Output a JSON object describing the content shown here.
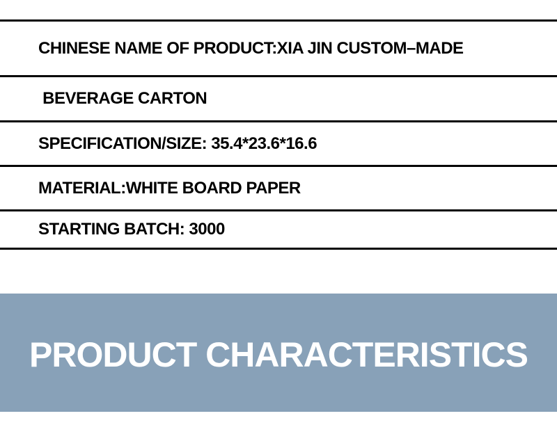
{
  "page": {
    "background_color": "#ffffff",
    "rule_color": "#000000",
    "text_color": "#000000"
  },
  "spec_table": {
    "rows": [
      {
        "label": "CHINESE NAME OF PRODUCT:XIA JIN CUSTOM–MADE"
      },
      {
        "label": " BEVERAGE CARTON"
      },
      {
        "label": "SPECIFICATION/SIZE: 35.4*23.6*16.6"
      },
      {
        "label": "MATERIAL:WHITE BOARD PAPER"
      },
      {
        "label": "STARTING BATCH: 3000"
      }
    ]
  },
  "banner": {
    "title": "PRODUCT CHARACTERISTICS",
    "background_color": "#88a1b8",
    "text_color": "#ffffff"
  }
}
